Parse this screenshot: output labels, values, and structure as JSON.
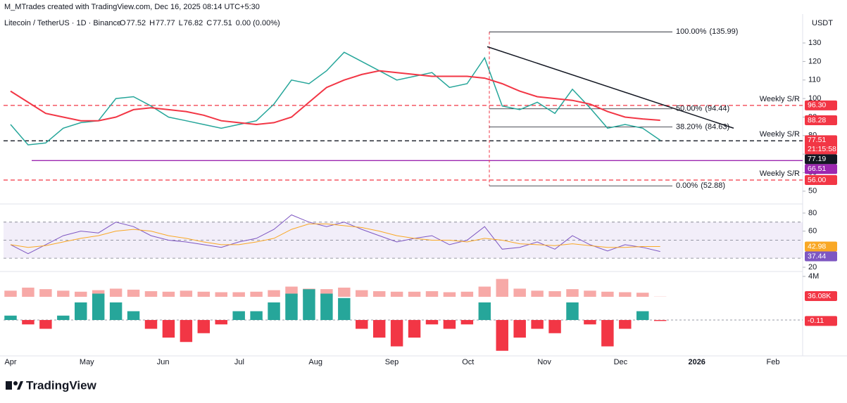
{
  "header": {
    "attribution": "M_MTrades created with TradingView.com, Dec 16, 2025 08:14 UTC+5:30"
  },
  "legend": {
    "symbol": "Litecoin / TetherUS · 1D · Binance",
    "o_label": "O",
    "open": 77.52,
    "h_label": "H",
    "high": 77.77,
    "l_label": "L",
    "low": 76.82,
    "c_label": "C",
    "close": 77.51,
    "change": "0.00 (0.00%)",
    "countdown": "21:15:58"
  },
  "currency": "USDT",
  "logo": "TradingView",
  "x_axis": {
    "categories": [
      "Apr",
      "May",
      "Jun",
      "Jul",
      "Aug",
      "Sep",
      "Oct",
      "Nov",
      "Dec",
      "2026",
      "Feb"
    ]
  },
  "chart_data": [
    {
      "type": "line",
      "ylim": [
        45,
        141.8
      ],
      "yticks": [
        130,
        120,
        110,
        100,
        90,
        80,
        70,
        60,
        50
      ],
      "series": [
        {
          "color": "#26a69a",
          "values": [
            86,
            75,
            76,
            84,
            87,
            88,
            100,
            101,
            96,
            90,
            88,
            86,
            84,
            86,
            88,
            97,
            110,
            108,
            115,
            125,
            120,
            115,
            110,
            112,
            114,
            106,
            108,
            122,
            96,
            94,
            98,
            92,
            105,
            95,
            84,
            86,
            84,
            77.51
          ]
        },
        {
          "color": "#f23645",
          "values": [
            104,
            98,
            92,
            90,
            88,
            88,
            90,
            94,
            95,
            94,
            93,
            91,
            88,
            87,
            86,
            87,
            90,
            98,
            106,
            110,
            113,
            115,
            114,
            113,
            112,
            112,
            112,
            111,
            108,
            104,
            101,
            100,
            99,
            97,
            93,
            90,
            89,
            88.28
          ]
        }
      ],
      "levels": [
        {
          "value": 96.3,
          "value_label": "96.30",
          "label": "Weekly S/R",
          "color": "#f23645",
          "style": "dashed"
        },
        {
          "value": 77.19,
          "label": "Weekly S/R",
          "color": "#131722",
          "style": "dashed"
        },
        {
          "value": 66.51,
          "color": "#9c27b0",
          "style": "solid"
        },
        {
          "value": 56,
          "value_label": "56.00",
          "label": "Weekly S/R",
          "color": "#f23645",
          "style": "dashed"
        }
      ],
      "fib": [
        {
          "level": "100.00%",
          "value": 135.99,
          "value_label": "(135.99)"
        },
        {
          "level": "50.00%",
          "value": 94.44,
          "value_label": "(94.44)"
        },
        {
          "level": "38.20%",
          "value": 84.63,
          "value_label": "(84.63)"
        },
        {
          "level": "0.00%",
          "value": 52.88,
          "value_label": "(52.88)"
        }
      ],
      "trendline": [
        128,
        84
      ]
    },
    {
      "type": "line",
      "ylim": [
        16.1,
        86.2
      ],
      "yticks": [
        80,
        60,
        20
      ],
      "bands": [
        70,
        50,
        30
      ],
      "series": [
        {
          "color": "#7e57c2",
          "values": [
            45,
            35,
            45,
            55,
            60,
            58,
            70,
            65,
            55,
            50,
            48,
            45,
            42,
            48,
            52,
            62,
            78,
            70,
            65,
            70,
            62,
            55,
            48,
            52,
            55,
            45,
            50,
            65,
            40,
            42,
            48,
            40,
            55,
            45,
            38,
            45,
            42,
            37.44
          ]
        },
        {
          "color": "#f9a825",
          "values": [
            45,
            42,
            44,
            48,
            52,
            55,
            60,
            62,
            60,
            55,
            52,
            48,
            45,
            45,
            48,
            52,
            62,
            68,
            68,
            66,
            64,
            60,
            55,
            52,
            50,
            50,
            48,
            52,
            50,
            46,
            45,
            44,
            46,
            44,
            42,
            42,
            43,
            42.98
          ]
        }
      ]
    },
    {
      "type": "bar",
      "ylim": [
        -4,
        5.2
      ],
      "series": [
        {
          "color": "#26a69a",
          "negative_color": "#f23645",
          "values": [
            0.5,
            -0.5,
            -1,
            0.5,
            2,
            3,
            2,
            1,
            -1,
            -2,
            -2.5,
            -1.5,
            -0.5,
            1,
            1,
            2,
            3,
            3.5,
            3,
            2.5,
            -1,
            -2,
            -3,
            -2,
            -0.5,
            -1,
            -0.5,
            2,
            -3.5,
            -2,
            -1,
            -1.5,
            2,
            -0.5,
            -3,
            -1,
            1,
            -0.11
          ]
        }
      ],
      "volume": {
        "color": "#f7a9a7",
        "yticks": [
          {
            "value": 4,
            "label": "4M"
          }
        ],
        "values": [
          1.2,
          1.8,
          1.5,
          1.2,
          1,
          1.3,
          1.6,
          1.4,
          1.1,
          1,
          1.2,
          1,
          0.9,
          0.9,
          1,
          1.3,
          2,
          1.6,
          1.5,
          1.8,
          1.3,
          1.1,
          1,
          1,
          1.1,
          0.9,
          1,
          2,
          3.5,
          1.6,
          1.2,
          1.1,
          1.5,
          1.2,
          1,
          0.9,
          0.8,
          0.03608
        ],
        "value_labels": {
          "37": "36.08K"
        }
      }
    }
  ]
}
